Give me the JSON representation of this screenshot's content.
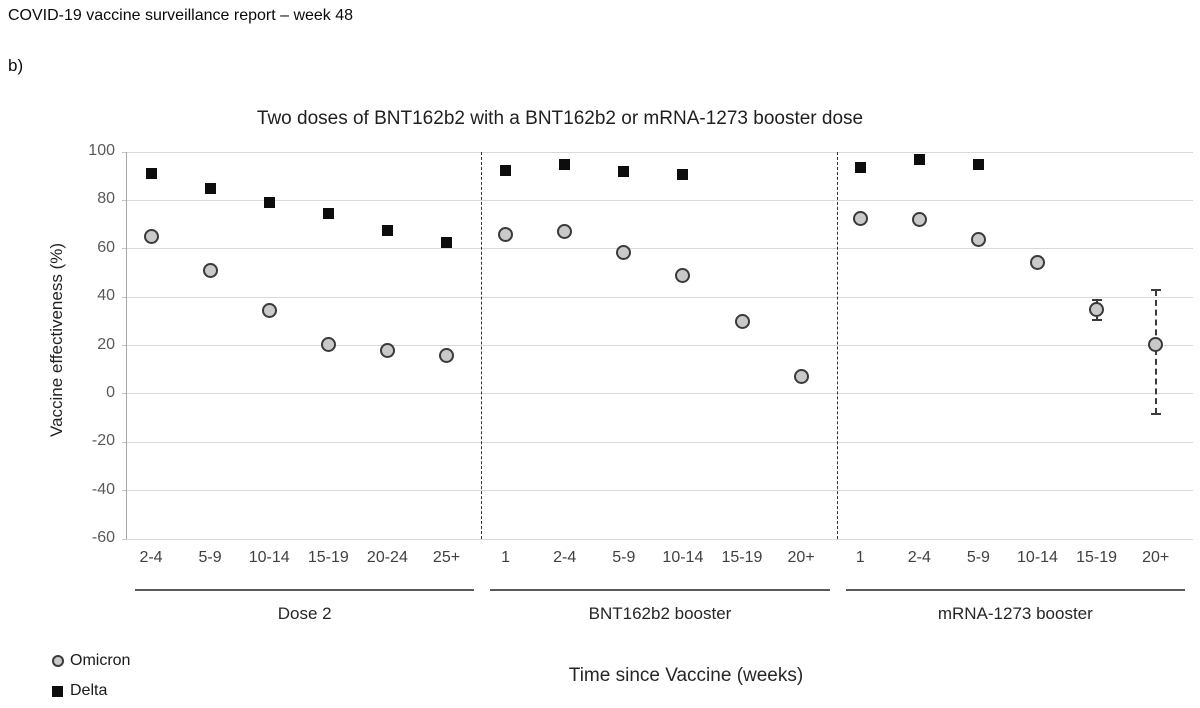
{
  "page": {
    "report_header": "COVID-19 vaccine surveillance report – week 48",
    "panel_label": "b)"
  },
  "chart_data": {
    "type": "scatter",
    "title": "Two doses of BNT162b2 with a BNT162b2 or mRNA-1273 booster dose",
    "xlabel": "Time since Vaccine (weeks)",
    "ylabel": "Vaccine effectiveness (%)",
    "ylim": [
      -60,
      100
    ],
    "yticks": [
      100,
      80,
      60,
      40,
      20,
      0,
      -20,
      -40,
      -60
    ],
    "grid": true,
    "legend_position": "bottom-left",
    "categories": [
      "2-4",
      "5-9",
      "10-14",
      "15-19",
      "20-24",
      "25+",
      "1",
      "2-4",
      "5-9",
      "10-14",
      "15-19",
      "20+",
      "1",
      "2-4",
      "5-9",
      "10-14",
      "15-19",
      "20+"
    ],
    "groups": [
      {
        "label": "Dose 2",
        "span": [
          0,
          5
        ]
      },
      {
        "label": "BNT162b2 booster",
        "span": [
          6,
          11
        ]
      },
      {
        "label": "mRNA-1273 booster",
        "span": [
          12,
          17
        ]
      }
    ],
    "series": [
      {
        "name": "Omicron",
        "marker": "circle",
        "fill": "#c9c9c9",
        "stroke": "#3a3a3a",
        "values": [
          65,
          51,
          34.5,
          20.5,
          18,
          16,
          66,
          67,
          58.5,
          49,
          30,
          7,
          72.5,
          72,
          64,
          54.5,
          35,
          20.5
        ]
      },
      {
        "name": "Delta",
        "marker": "square",
        "fill": "#0d0d0d",
        "stroke": "#0d0d0d",
        "values": [
          91,
          85,
          79,
          74.5,
          67.5,
          62.5,
          92.5,
          95,
          92,
          90.5,
          null,
          null,
          93.5,
          97,
          95,
          null,
          null,
          null
        ]
      }
    ],
    "error_bars": [
      {
        "series": "Omicron",
        "category_index": 16,
        "low": 30.5,
        "high": 39
      },
      {
        "series": "Omicron",
        "category_index": 17,
        "low": -8.5,
        "high": 43
      }
    ],
    "colors": {
      "gridline": "#d9d9d9",
      "axis_line": "#a6a6a6",
      "separator": "#333333",
      "error_bar": "#3a3a3a",
      "tick_label": "#595959"
    }
  }
}
